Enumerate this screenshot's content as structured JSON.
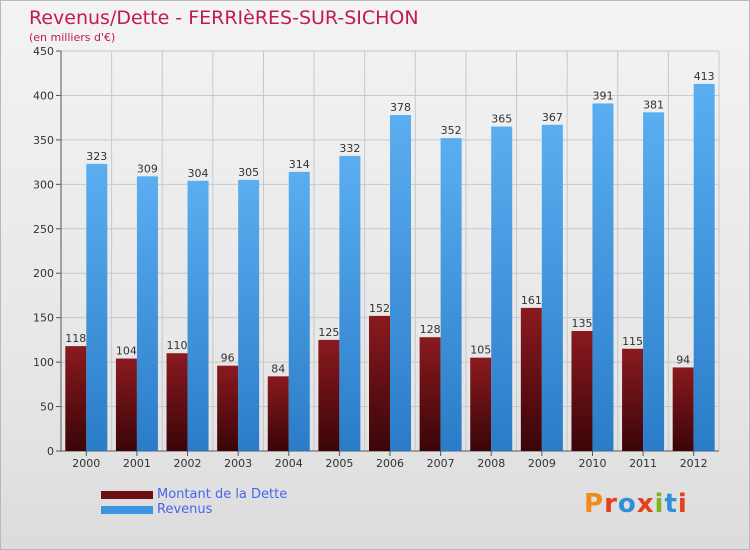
{
  "header": {
    "title": "Revenus/Dette - FERRIèRES-SUR-SICHON",
    "subtitle": "(en milliers d'€)"
  },
  "legend": {
    "items": [
      {
        "label": "Montant de la Dette",
        "color": "#6e0f14"
      },
      {
        "label": "Revenus",
        "color": "#3d94e0"
      }
    ]
  },
  "logo": {
    "text": "Proxiti",
    "colors": [
      "#f08a1c",
      "#e2401f",
      "#2f8fd8",
      "#e2401f",
      "#7ab51d",
      "#2f8fd8",
      "#e2401f"
    ]
  },
  "chart_data": {
    "type": "bar",
    "categories": [
      "2000",
      "2001",
      "2002",
      "2003",
      "2004",
      "2005",
      "2006",
      "2007",
      "2008",
      "2009",
      "2010",
      "2011",
      "2012"
    ],
    "series": [
      {
        "name": "Montant de la Dette",
        "values": [
          118,
          104,
          110,
          96,
          84,
          125,
          152,
          128,
          105,
          161,
          135,
          115,
          94
        ],
        "color": "#6e0f14"
      },
      {
        "name": "Revenus",
        "values": [
          323,
          309,
          304,
          305,
          314,
          332,
          378,
          352,
          365,
          367,
          391,
          381,
          413
        ],
        "color": "#3d94e0"
      }
    ],
    "ylim": [
      0,
      450
    ],
    "yticks": [
      0,
      50,
      100,
      150,
      200,
      250,
      300,
      350,
      400,
      450
    ],
    "grid": true,
    "legend_position": "bottom-left"
  }
}
